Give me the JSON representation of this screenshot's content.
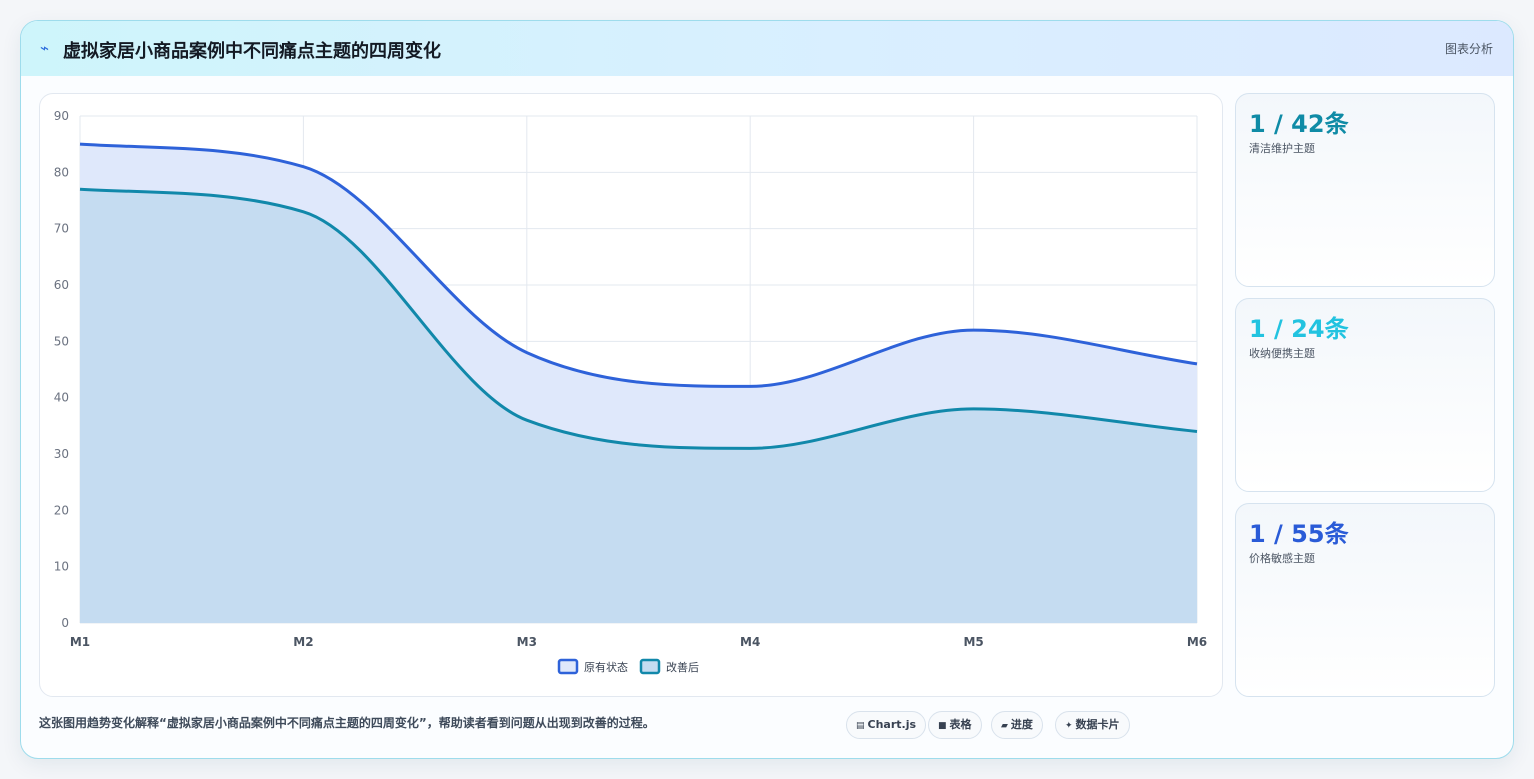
{
  "header": {
    "icon": "trend-icon",
    "title": "虚拟家居小商品案例中不同痛点主题的四周变化",
    "right_label": "图表分析"
  },
  "chart_data": {
    "type": "area",
    "title": "",
    "xlabel": "",
    "ylabel": "",
    "categories": [
      "M1",
      "M2",
      "M3",
      "M4",
      "M5",
      "M6"
    ],
    "ylim": [
      0,
      90
    ],
    "yticks": [
      0,
      10,
      20,
      30,
      40,
      50,
      60,
      70,
      80,
      90
    ],
    "grid": true,
    "legend_position": "bottom",
    "series": [
      {
        "name": "原有状态",
        "values": [
          85,
          81,
          48,
          42,
          52,
          46
        ],
        "color": "#2e62d9",
        "fill": "#dfe8fb"
      },
      {
        "name": "改善后",
        "values": [
          77,
          73,
          36,
          31,
          38,
          34
        ],
        "color": "#1188aa",
        "fill": "#c5dcf1"
      }
    ]
  },
  "stats": [
    {
      "value": "1 / 42条",
      "label": "清洁维护主题",
      "color": "#0f8ba6"
    },
    {
      "value": "1 / 24条",
      "label": "收纳便携主题",
      "color": "#22c3e0"
    },
    {
      "value": "1 / 55条",
      "label": "价格敏感主题",
      "color": "#2a5bd7"
    }
  ],
  "footer": {
    "description": "这张图用趋势变化解释“虚拟家居小商品案例中不同痛点主题的四周变化”，帮助读者看到问题从出现到改善的过程。",
    "chips": [
      {
        "icon": "chart-icon",
        "glyph": "▤",
        "label": "Chart.js"
      },
      {
        "icon": "table-icon",
        "glyph": "■",
        "label": "表格"
      },
      {
        "icon": "progress-icon",
        "glyph": "▰",
        "label": "进度"
      },
      {
        "icon": "card-icon",
        "glyph": "✦",
        "label": "数据卡片"
      }
    ]
  }
}
